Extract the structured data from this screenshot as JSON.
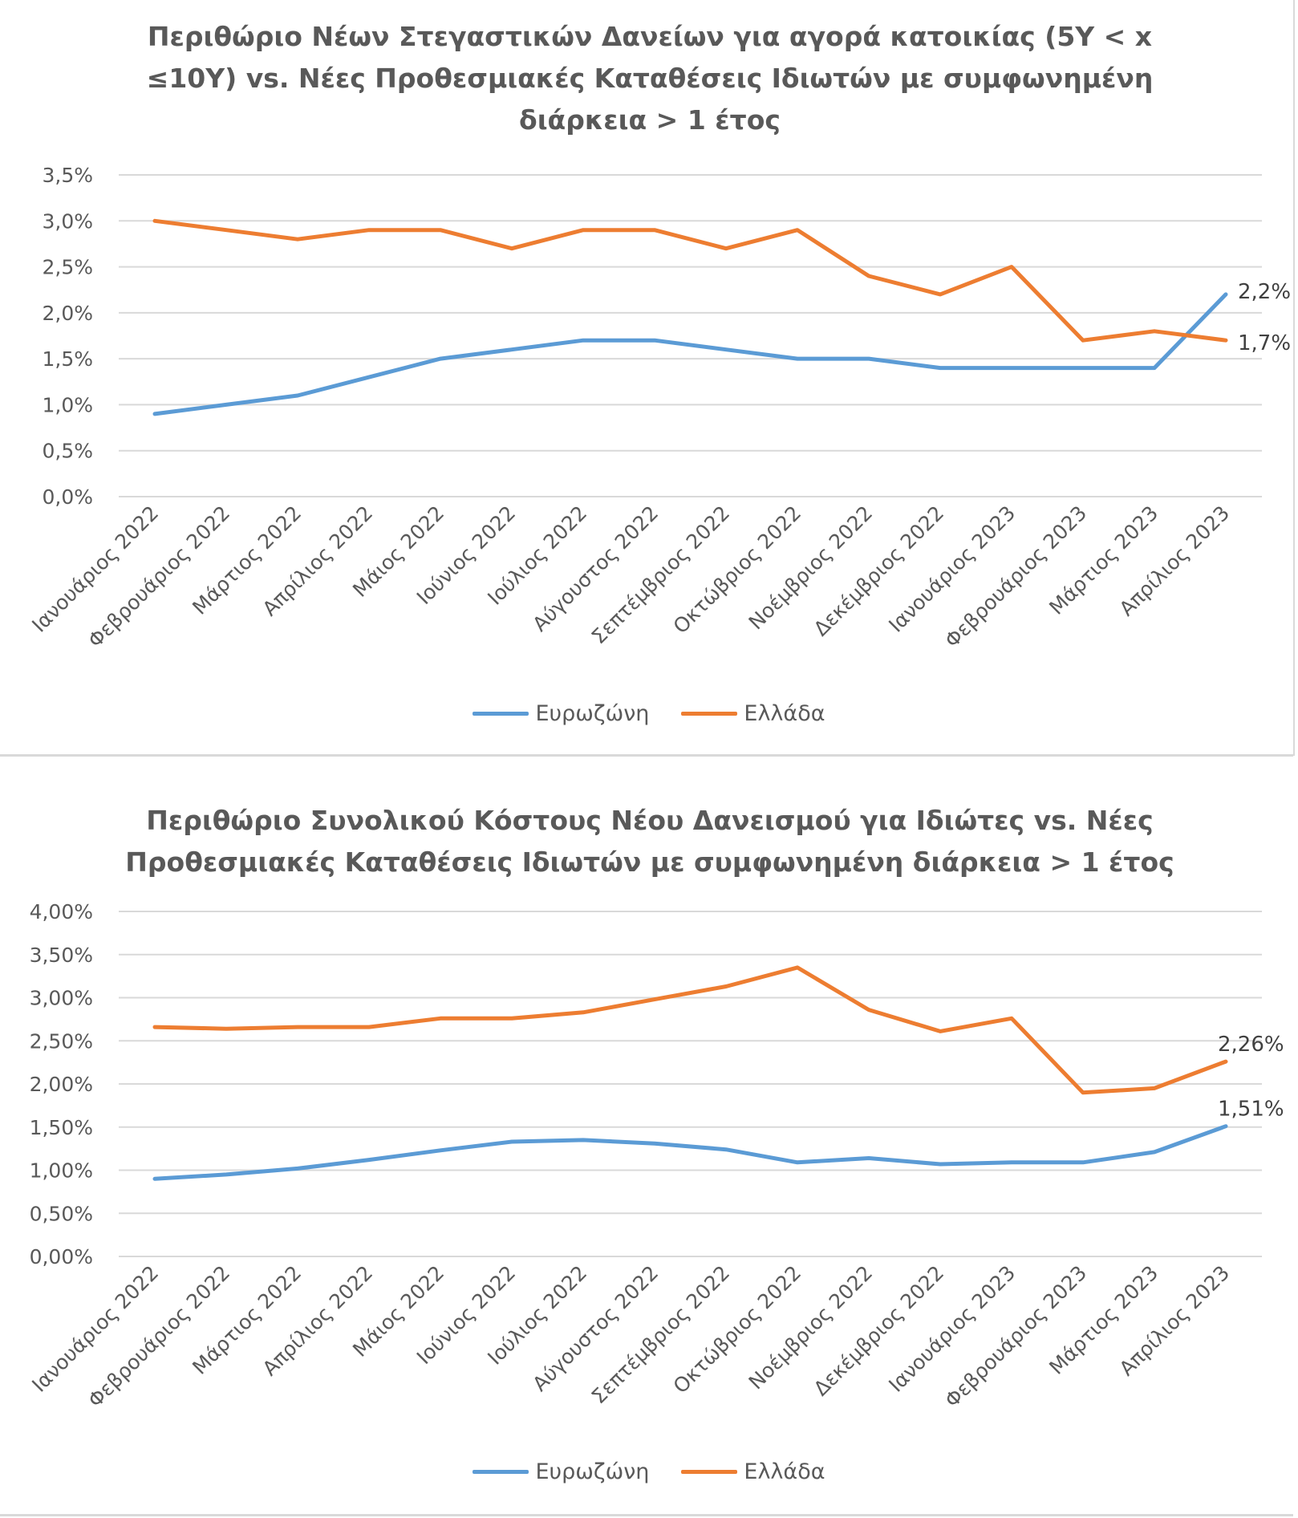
{
  "chart_data": [
    {
      "type": "line",
      "title": "Περιθώριο Νέων Στεγαστικών Δανείων για αγορά κατοικίας (5Y < x ≤10Y) vs. Νέες Προθεσμιακές Καταθέσεις Ιδιωτών με συμφωνημένη διάρκεια > 1 έτος",
      "title_lines": [
        "Περιθώριο Νέων Στεγαστικών Δανείων για αγορά κατοικίας (5Y < x",
        "≤10Y) vs. Νέες Προθεσμιακές Καταθέσεις Ιδιωτών με συμφωνημένη",
        "διάρκεια > 1 έτος"
      ],
      "categories": [
        "Ιανουάριος 2022",
        "Φεβρουάριος 2022",
        "Μάρτιος 2022",
        "Απρίλιος 2022",
        "Μάιος 2022",
        "Ιούνιος 2022",
        "Ιούλιος 2022",
        "Αύγουστος 2022",
        "Σεπτέμβριος 2022",
        "Οκτώβριος 2022",
        "Νοέμβριος 2022",
        "Δεκέμβριος 2022",
        "Ιανουάριος 2023",
        "Φεβρουάριος 2023",
        "Μάρτιος 2023",
        "Απρίλιος 2023"
      ],
      "series": [
        {
          "name": "Ευρωζώνη",
          "color": "#5b9bd5",
          "values": [
            0.9,
            1.0,
            1.1,
            1.3,
            1.5,
            1.6,
            1.7,
            1.7,
            1.6,
            1.5,
            1.5,
            1.4,
            1.4,
            1.4,
            1.4,
            2.2
          ]
        },
        {
          "name": "Ελλάδα",
          "color": "#ed7d31",
          "values": [
            3.0,
            2.9,
            2.8,
            2.9,
            2.9,
            2.7,
            2.9,
            2.9,
            2.7,
            2.9,
            2.4,
            2.2,
            2.5,
            1.7,
            1.8,
            1.7
          ]
        }
      ],
      "data_labels": [
        {
          "series": "Ευρωζώνη",
          "index": 15,
          "text": "2,2%"
        },
        {
          "series": "Ελλάδα",
          "index": 15,
          "text": "1,7%"
        }
      ],
      "yticks": [
        "0,0%",
        "0,5%",
        "1,0%",
        "1,5%",
        "2,0%",
        "2,5%",
        "3,0%",
        "3,5%"
      ],
      "ylim": [
        0,
        3.5
      ],
      "ystep": 0.5,
      "grid": true,
      "legend": "bottom"
    },
    {
      "type": "line",
      "title": "Περιθώριο Συνολικού Κόστους Νέου Δανεισμού για Ιδιώτες vs. Νέες Προθεσμιακές Καταθέσεις Ιδιωτών με συμφωνημένη διάρκεια > 1 έτος",
      "title_lines": [
        "Περιθώριο Συνολικού Κόστους Νέου Δανεισμού για Ιδιώτες vs. Νέες",
        "Προθεσμιακές Καταθέσεις Ιδιωτών με συμφωνημένη διάρκεια > 1 έτος"
      ],
      "categories": [
        "Ιανουάριος 2022",
        "Φεβρουάριος 2022",
        "Μάρτιος 2022",
        "Απρίλιος 2022",
        "Μάιος 2022",
        "Ιούνιος 2022",
        "Ιούλιος 2022",
        "Αύγουστος 2022",
        "Σεπτέμβριος 2022",
        "Οκτώβριος 2022",
        "Νοέμβριος 2022",
        "Δεκέμβριος 2022",
        "Ιανουάριος 2023",
        "Φεβρουάριος 2023",
        "Μάρτιος 2023",
        "Απρίλιος 2023"
      ],
      "series": [
        {
          "name": "Ευρωζώνη",
          "color": "#5b9bd5",
          "values": [
            0.9,
            0.95,
            1.02,
            1.12,
            1.23,
            1.33,
            1.35,
            1.31,
            1.24,
            1.09,
            1.14,
            1.07,
            1.09,
            1.09,
            1.21,
            1.51
          ]
        },
        {
          "name": "Ελλάδα",
          "color": "#ed7d31",
          "values": [
            2.66,
            2.64,
            2.66,
            2.66,
            2.76,
            2.76,
            2.83,
            2.98,
            3.13,
            3.35,
            2.86,
            2.61,
            2.76,
            1.9,
            1.95,
            2.26
          ]
        }
      ],
      "data_labels": [
        {
          "series": "Ευρωζώνη",
          "index": 15,
          "text": "1,51%"
        },
        {
          "series": "Ελλάδα",
          "index": 15,
          "text": "2,26%"
        }
      ],
      "yticks": [
        "0,00%",
        "0,50%",
        "1,00%",
        "1,50%",
        "2,00%",
        "2,50%",
        "3,00%",
        "3,50%",
        "4,00%"
      ],
      "ylim": [
        0,
        4.0
      ],
      "ystep": 0.5,
      "grid": true,
      "legend": "bottom"
    }
  ]
}
